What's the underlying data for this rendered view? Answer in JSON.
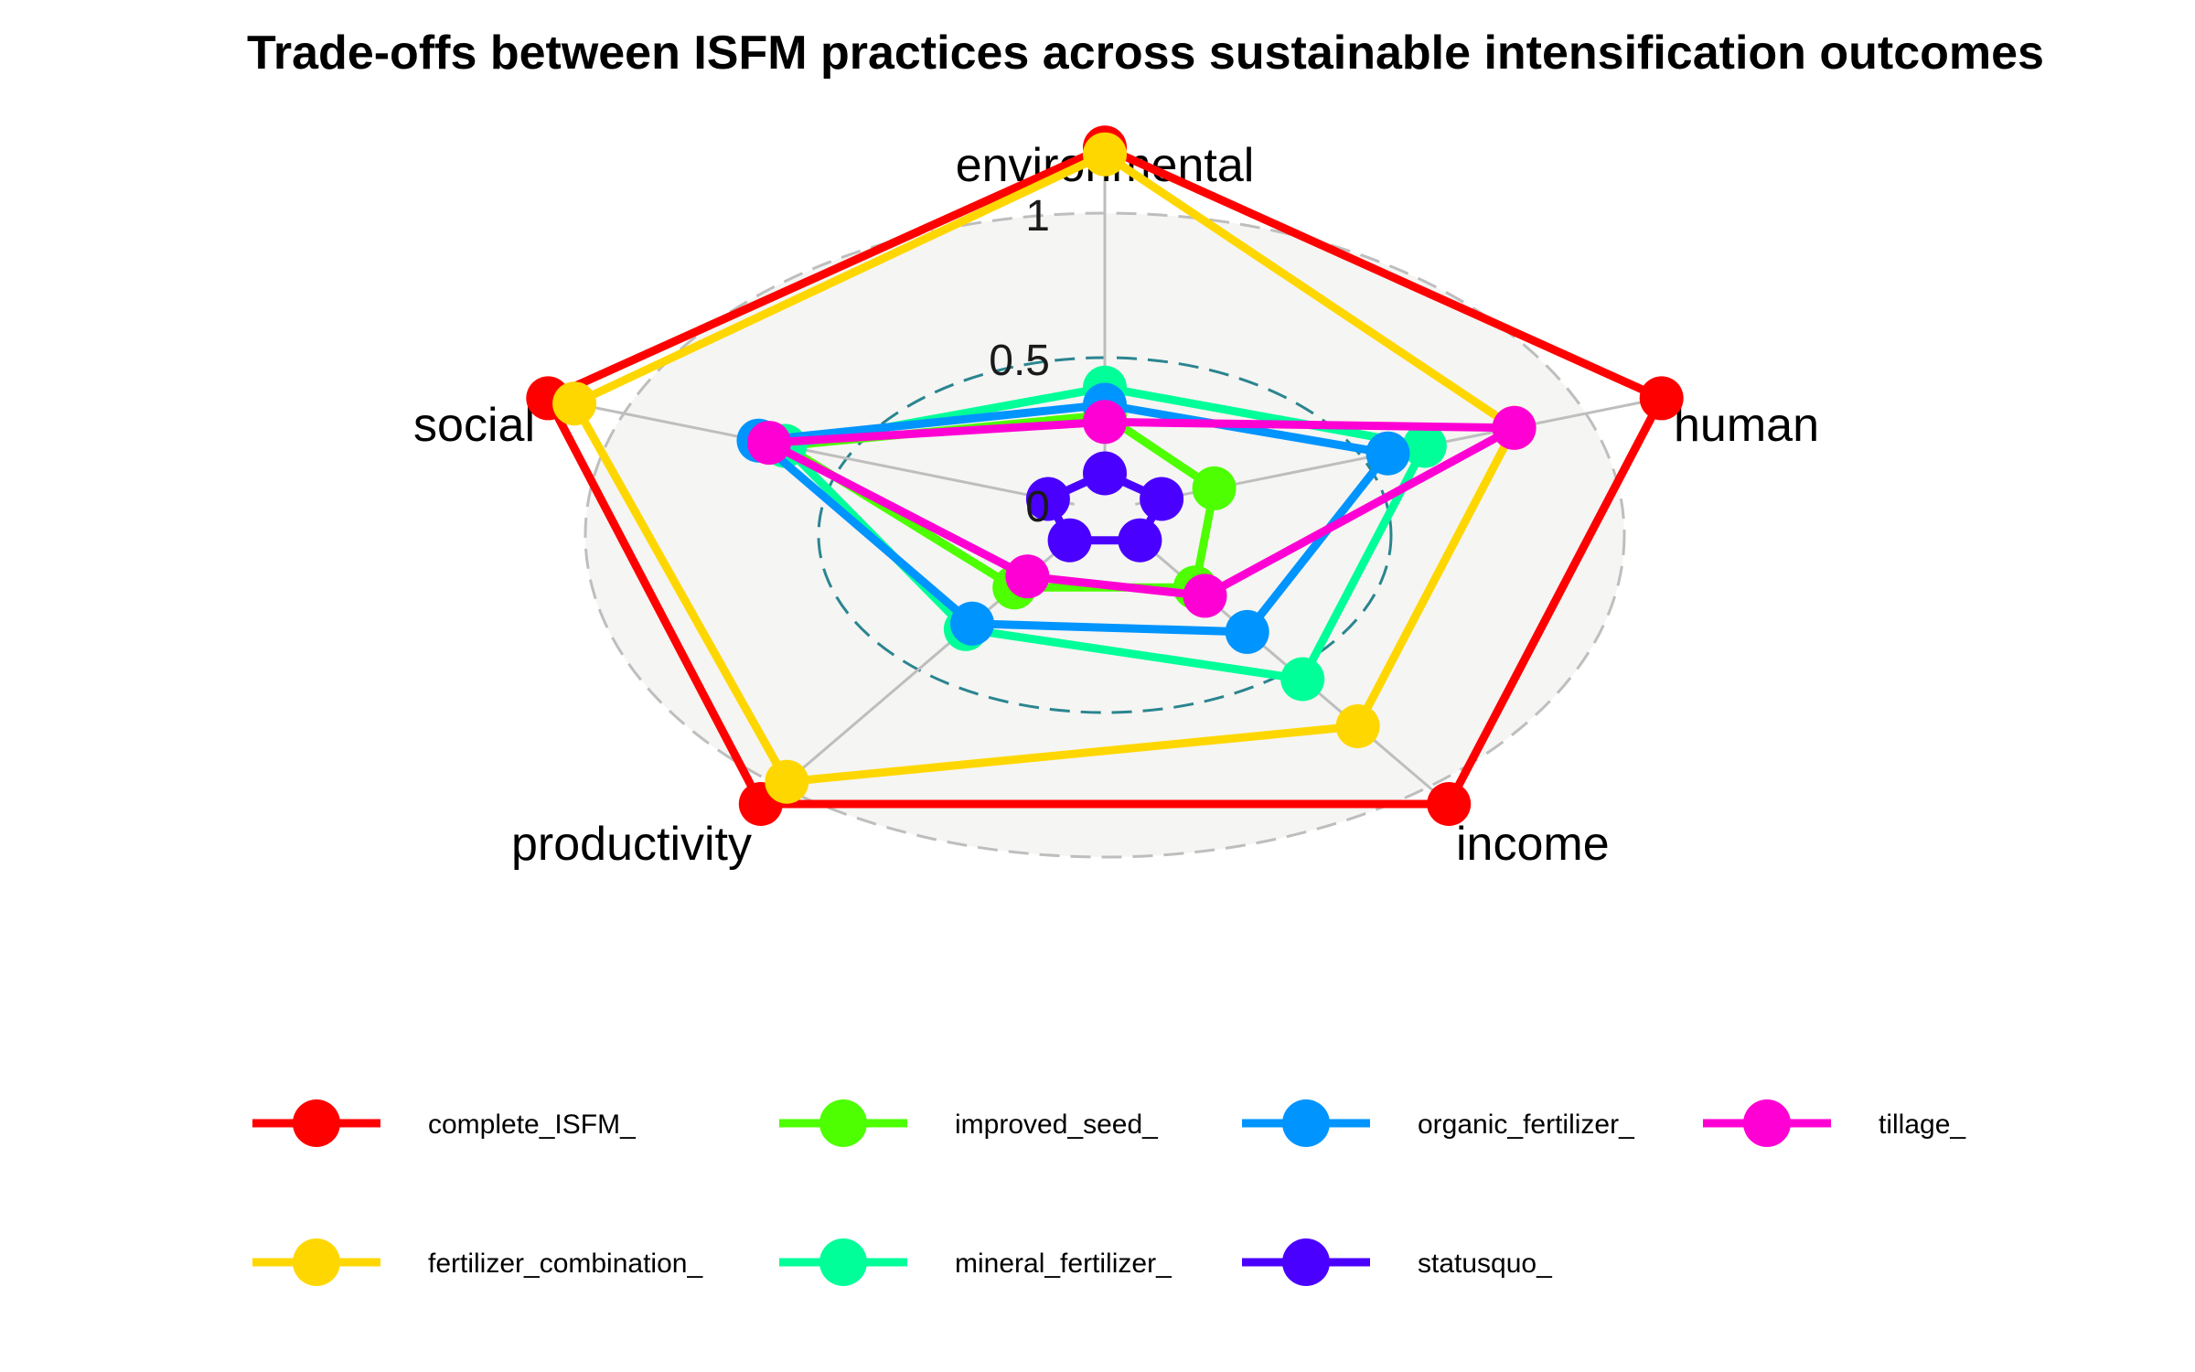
{
  "chart_data": {
    "type": "radar",
    "title": "Trade-offs between ISFM practices across sustainable intensification outcomes",
    "axes": [
      "environmental",
      "human",
      "income",
      "productivity",
      "social"
    ],
    "rlim": [
      0,
      1
    ],
    "ticks": [
      {
        "value": 0,
        "label": "0"
      },
      {
        "value": 0.5,
        "label": "0.5"
      },
      {
        "value": 1,
        "label": "1"
      }
    ],
    "series": [
      {
        "name": "complete_ISFM_",
        "color": "#FF0000",
        "values": [
          1.0,
          1.0,
          1.0,
          1.0,
          1.0
        ]
      },
      {
        "name": "fertilizer_combination_",
        "color": "#FFD700",
        "values": [
          0.98,
          0.72,
          0.72,
          0.92,
          0.95
        ]
      },
      {
        "name": "improved_seed_",
        "color": "#4DFF00",
        "values": [
          0.22,
          0.15,
          0.22,
          0.22,
          0.55
        ]
      },
      {
        "name": "mineral_fertilizer_",
        "color": "#00FF99",
        "values": [
          0.3,
          0.55,
          0.55,
          0.37,
          0.55
        ]
      },
      {
        "name": "organic_fertilizer_",
        "color": "#0094FF",
        "values": [
          0.25,
          0.48,
          0.38,
          0.35,
          0.6
        ]
      },
      {
        "name": "statusquo_",
        "color": "#4A00FF",
        "values": [
          0.05,
          0.05,
          0.05,
          0.05,
          0.05
        ]
      },
      {
        "name": "tillage_",
        "color": "#FF00D4",
        "values": [
          0.2,
          0.72,
          0.25,
          0.18,
          0.58
        ]
      }
    ],
    "legend_position": "bottom",
    "grid": true
  }
}
